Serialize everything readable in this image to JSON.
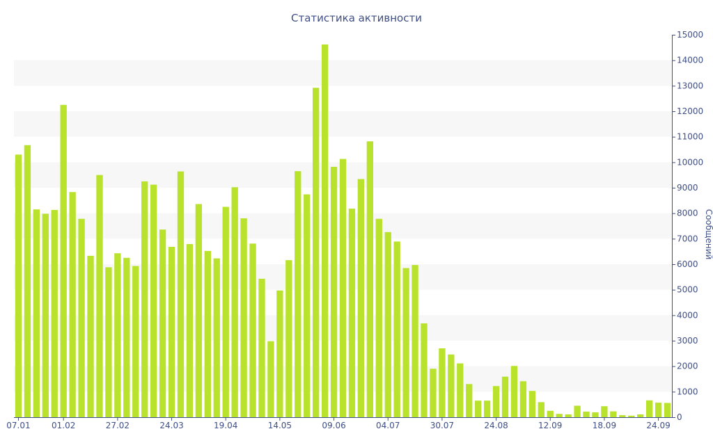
{
  "chart_data": {
    "type": "bar",
    "title": "Статистика активности",
    "ylabel": "Сообщений",
    "xlabel": "",
    "ylim": [
      0,
      15000
    ],
    "y_ticks": [
      0,
      1000,
      2000,
      3000,
      4000,
      5000,
      6000,
      7000,
      8000,
      9000,
      10000,
      11000,
      12000,
      13000,
      14000,
      15000
    ],
    "y_axis_position": "right",
    "x_tick_labels": [
      {
        "label": "07.01",
        "index": 0
      },
      {
        "label": "01.02",
        "index": 5
      },
      {
        "label": "27.02",
        "index": 11
      },
      {
        "label": "24.03",
        "index": 17
      },
      {
        "label": "19.04",
        "index": 23
      },
      {
        "label": "14.05",
        "index": 29
      },
      {
        "label": "09.06",
        "index": 35
      },
      {
        "label": "04.07",
        "index": 41
      },
      {
        "label": "30.07",
        "index": 47
      },
      {
        "label": "24.08",
        "index": 53
      },
      {
        "label": "12.09",
        "index": 59
      },
      {
        "label": "18.09",
        "index": 65
      },
      {
        "label": "24.09",
        "index": 71
      }
    ],
    "values": [
      10300,
      10670,
      8150,
      7980,
      8130,
      12250,
      8830,
      7780,
      6330,
      9500,
      5880,
      6430,
      6250,
      5930,
      9250,
      9120,
      7360,
      6680,
      9640,
      6790,
      8360,
      6520,
      6230,
      8250,
      9020,
      7800,
      6810,
      5430,
      2980,
      4970,
      6160,
      9650,
      8740,
      12920,
      14620,
      9820,
      10130,
      8180,
      9340,
      10820,
      7780,
      7260,
      6890,
      5850,
      5970,
      3680,
      1900,
      2700,
      2460,
      2110,
      1300,
      650,
      650,
      1220,
      1590,
      2010,
      1410,
      1030,
      590,
      250,
      130,
      110,
      450,
      220,
      190,
      430,
      230,
      80,
      60,
      110,
      660,
      570,
      560
    ],
    "grid": "alternating-bands",
    "legend": "none",
    "colors": {
      "bar": "#b8e22c",
      "text": "#3e4e86",
      "band": "#f7f7f7"
    }
  }
}
